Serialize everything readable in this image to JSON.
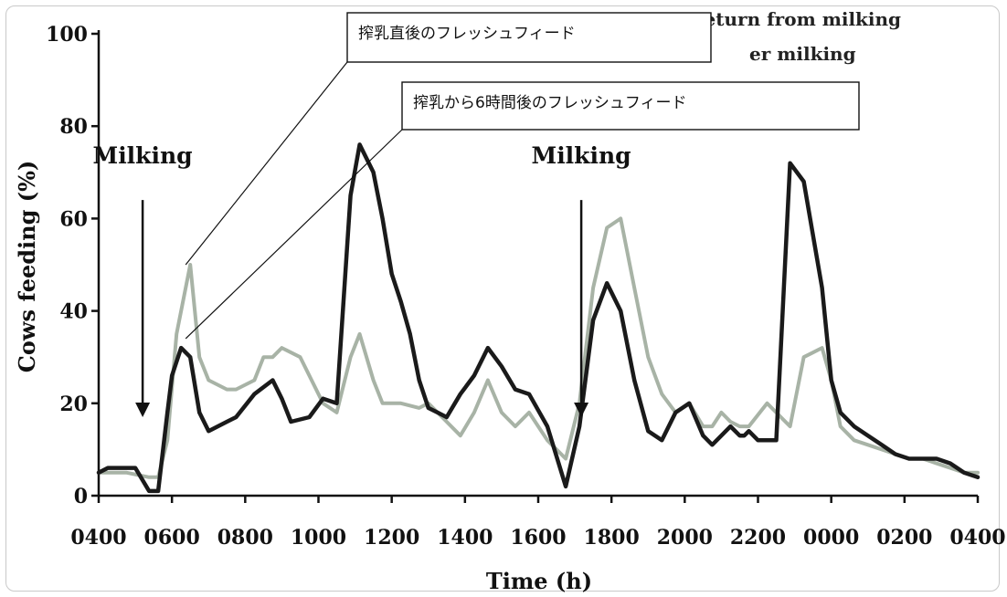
{
  "chart_data": {
    "type": "line",
    "xlabel": "Time (h)",
    "ylabel": "Cows feeding (%)",
    "ylim": [
      0,
      100
    ],
    "yticks": [
      0,
      20,
      40,
      60,
      80,
      100
    ],
    "xticks": [
      "0400",
      "0600",
      "0800",
      "1000",
      "1200",
      "1400",
      "1600",
      "1800",
      "2000",
      "2200",
      "0000",
      "0200",
      "0400"
    ],
    "grid": false,
    "legend_fragments": [
      "return from milking",
      "er milking"
    ],
    "series": [
      {
        "color": "#1a1a1a",
        "x": [
          0,
          10,
          20,
          40,
          55,
          65,
          75,
          80,
          90,
          100,
          110,
          120,
          140,
          150,
          170,
          190,
          200,
          210,
          230,
          245,
          260,
          275,
          285,
          300,
          310,
          320,
          330,
          340,
          350,
          360,
          370,
          380,
          395,
          410,
          425,
          440,
          455,
          470,
          490,
          510,
          525,
          540,
          555,
          570,
          585,
          600,
          615,
          630,
          645,
          660,
          670,
          680,
          690,
          700,
          705,
          710,
          720,
          730,
          740,
          755,
          770,
          790,
          800,
          810,
          825,
          840,
          855,
          870,
          885,
          900,
          915,
          930,
          945,
          960
        ],
        "y": [
          5,
          6,
          6,
          6,
          1,
          1,
          18,
          26,
          32,
          30,
          18,
          14,
          16,
          17,
          22,
          25,
          21,
          16,
          17,
          21,
          20,
          65,
          76,
          70,
          60,
          48,
          42,
          35,
          25,
          19,
          18,
          17,
          22,
          26,
          32,
          28,
          23,
          22,
          15,
          2,
          15,
          38,
          46,
          40,
          25,
          14,
          12,
          18,
          20,
          13,
          11,
          13,
          15,
          13,
          13,
          14,
          12,
          12,
          12,
          72,
          68,
          45,
          25,
          18,
          15,
          13,
          11,
          9,
          8,
          8,
          8,
          7,
          5,
          4
        ]
      },
      {
        "color": "#a8b3a6",
        "x": [
          0,
          30,
          55,
          65,
          75,
          85,
          95,
          100,
          110,
          120,
          140,
          150,
          170,
          180,
          190,
          200,
          220,
          245,
          260,
          275,
          285,
          300,
          310,
          330,
          350,
          360,
          380,
          395,
          410,
          425,
          440,
          455,
          470,
          490,
          510,
          525,
          540,
          555,
          570,
          585,
          600,
          615,
          630,
          645,
          660,
          670,
          680,
          690,
          700,
          710,
          730,
          740,
          755,
          770,
          790,
          800,
          810,
          825,
          840,
          855,
          870,
          885,
          900,
          915,
          930,
          945,
          960
        ],
        "y": [
          5,
          5,
          4,
          4,
          12,
          35,
          45,
          50,
          30,
          25,
          23,
          23,
          25,
          30,
          30,
          32,
          30,
          20,
          18,
          30,
          35,
          25,
          20,
          20,
          19,
          20,
          16,
          13,
          18,
          25,
          18,
          15,
          18,
          12,
          8,
          20,
          45,
          58,
          60,
          45,
          30,
          22,
          18,
          20,
          15,
          15,
          18,
          16,
          15,
          15,
          20,
          18,
          15,
          30,
          32,
          25,
          15,
          12,
          11,
          10,
          9,
          8,
          8,
          7,
          6,
          5,
          5
        ]
      }
    ],
    "annotations": [
      {
        "label": "Milking",
        "x": 48,
        "arrow_from_y": 64,
        "arrow_to_y": 17
      },
      {
        "label": "Milking",
        "x": 527,
        "arrow_from_y": 64,
        "arrow_to_y": 17
      }
    ],
    "callouts": [
      {
        "label": "搾乳直後のフレッシュフィード",
        "target_x": 95,
        "target_y": 50
      },
      {
        "label": "搾乳から6時間後のフレッシュフィード",
        "target_x": 95,
        "target_y": 34
      }
    ]
  }
}
